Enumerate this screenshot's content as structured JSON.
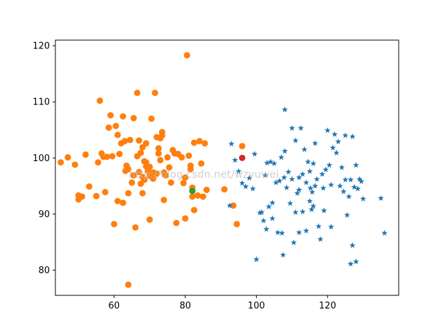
{
  "watermark": "http://blog.csdn.net/wzyuwei",
  "colors": {
    "background": "#ffffff",
    "cluster_dots": "#ff7f0e",
    "cluster_stars": "#1f77b4",
    "center_green": "#2ca02c",
    "center_red": "#d62728",
    "axes": "#000000"
  },
  "chart_data": {
    "type": "scatter",
    "title": "",
    "xlabel": "",
    "ylabel": "",
    "xlim": [
      43.5,
      140
    ],
    "ylim": [
      75.5,
      121
    ],
    "xticks": [
      60,
      80,
      100,
      120
    ],
    "yticks": [
      80,
      90,
      100,
      110,
      120
    ],
    "grid": false,
    "series": [
      {
        "marker": "circle",
        "color": "#ff7f0e",
        "points": [
          [
            45,
            99.2
          ],
          [
            47,
            100.1
          ],
          [
            49,
            98.8
          ],
          [
            50,
            93.3
          ],
          [
            50,
            92.6
          ],
          [
            51,
            93.1
          ],
          [
            52,
            100.6
          ],
          [
            53,
            94.9
          ],
          [
            55,
            93.2
          ],
          [
            55.5,
            99.2
          ],
          [
            56,
            110.2
          ],
          [
            56.5,
            100.8
          ],
          [
            57,
            100.2
          ],
          [
            57.5,
            93.9
          ],
          [
            58,
            100.2
          ],
          [
            58.5,
            105.4
          ],
          [
            59,
            107.6
          ],
          [
            59.5,
            100.3
          ],
          [
            60,
            88.2
          ],
          [
            60.5,
            105.7
          ],
          [
            61,
            92.3
          ],
          [
            61,
            104.1
          ],
          [
            61.5,
            100.7
          ],
          [
            62,
            102.6
          ],
          [
            62.5,
            92.0
          ],
          [
            62.5,
            107.4
          ],
          [
            63,
            103.0
          ],
          [
            63.2,
            97.7
          ],
          [
            63.5,
            98.6
          ],
          [
            64,
            77.4
          ],
          [
            64,
            98.0
          ],
          [
            64,
            93.7
          ],
          [
            64.5,
            103.2
          ],
          [
            65,
            95.6
          ],
          [
            65.5,
            107.1
          ],
          [
            65.5,
            96.9
          ],
          [
            66,
            87.6
          ],
          [
            66.5,
            100.3
          ],
          [
            66.5,
            111.6
          ],
          [
            67,
            103.1
          ],
          [
            67,
            97.5
          ],
          [
            67.5,
            100.9
          ],
          [
            67.5,
            95.4
          ],
          [
            68,
            101.9
          ],
          [
            68,
            96.6
          ],
          [
            68,
            93.7
          ],
          [
            68.5,
            99.4
          ],
          [
            68.5,
            96.1
          ],
          [
            69,
            102.6
          ],
          [
            69,
            99.2
          ],
          [
            69,
            98.5
          ],
          [
            69.5,
            97.7
          ],
          [
            70,
            98.4
          ],
          [
            70,
            96.8
          ],
          [
            70,
            89.0
          ],
          [
            70.5,
            107.0
          ],
          [
            71,
            97.4
          ],
          [
            71,
            96.3
          ],
          [
            71.5,
            111.6
          ],
          [
            72,
            103.7
          ],
          [
            72,
            97.2
          ],
          [
            72.5,
            101.7
          ],
          [
            72.5,
            100.8
          ],
          [
            73,
            103.5
          ],
          [
            73,
            99.6
          ],
          [
            73.5,
            104.6
          ],
          [
            73.5,
            104.0
          ],
          [
            74,
            97.4
          ],
          [
            74,
            92.5
          ],
          [
            74.5,
            96.9
          ],
          [
            75,
            100.1
          ],
          [
            75.5,
            98.3
          ],
          [
            76,
            95.6
          ],
          [
            76.5,
            101.4
          ],
          [
            77,
            100.8
          ],
          [
            77.5,
            88.4
          ],
          [
            78,
            100.7
          ],
          [
            79,
            100.1
          ],
          [
            79.5,
            95.5
          ],
          [
            80,
            96.5
          ],
          [
            80,
            89.2
          ],
          [
            80.5,
            118.3
          ],
          [
            81,
            100.4
          ],
          [
            81.5,
            98.6
          ],
          [
            81.5,
            98.0
          ],
          [
            82,
            93.1
          ],
          [
            82,
            94.7
          ],
          [
            82.5,
            90.7
          ],
          [
            82.5,
            102.7
          ],
          [
            83.5,
            93.3
          ],
          [
            84,
            103.0
          ],
          [
            84.5,
            99.0
          ],
          [
            85,
            93.1
          ],
          [
            85.5,
            102.6
          ],
          [
            86,
            94.3
          ],
          [
            91,
            94.4
          ],
          [
            93.5,
            91.5
          ],
          [
            94.5,
            88.2
          ],
          [
            96,
            102.1
          ]
        ]
      },
      {
        "marker": "star",
        "color": "#1f77b4",
        "points": [
          [
            92.5,
            91.5
          ],
          [
            93,
            102.5
          ],
          [
            94,
            99.6
          ],
          [
            95,
            97.6
          ],
          [
            96,
            95.5
          ],
          [
            97,
            94.9
          ],
          [
            98,
            96.4
          ],
          [
            99,
            94.5
          ],
          [
            99.5,
            100.7
          ],
          [
            100,
            81.9
          ],
          [
            101,
            90.2
          ],
          [
            101.5,
            90.3
          ],
          [
            102,
            88.8
          ],
          [
            102.5,
            96.9
          ],
          [
            102.8,
            87.3
          ],
          [
            103,
            99.1
          ],
          [
            103.5,
            91.3
          ],
          [
            104,
            99.3
          ],
          [
            104.5,
            89.2
          ],
          [
            104.5,
            92.0
          ],
          [
            105,
            99.0
          ],
          [
            105.5,
            95.6
          ],
          [
            106,
            86.7
          ],
          [
            106.5,
            95.9
          ],
          [
            107,
            100.1
          ],
          [
            107.2,
            86.6
          ],
          [
            107.5,
            82.7
          ],
          [
            107.8,
            96.5
          ],
          [
            108,
            101.2
          ],
          [
            108,
            108.6
          ],
          [
            108.5,
            94.7
          ],
          [
            109,
            97.5
          ],
          [
            109.5,
            91.9
          ],
          [
            110,
            96.2
          ],
          [
            110,
            105.3
          ],
          [
            110.5,
            84.9
          ],
          [
            111,
            103.1
          ],
          [
            111,
            90.3
          ],
          [
            111.5,
            93.7
          ],
          [
            112,
            96.5
          ],
          [
            112,
            86.7
          ],
          [
            112,
            94.3
          ],
          [
            112.5,
            105.3
          ],
          [
            113,
            97.1
          ],
          [
            113,
            90.4
          ],
          [
            113.5,
            101.5
          ],
          [
            114,
            95.6
          ],
          [
            114,
            87.0
          ],
          [
            114.5,
            99.3
          ],
          [
            115,
            92.3
          ],
          [
            115,
            97.6
          ],
          [
            115.2,
            94.6
          ],
          [
            115.5,
            90.8
          ],
          [
            115.7,
            93.9
          ],
          [
            116,
            91.4
          ],
          [
            116,
            99.0
          ],
          [
            116.5,
            102.6
          ],
          [
            116.5,
            95.0
          ],
          [
            117,
            96.2
          ],
          [
            117.5,
            87.8
          ],
          [
            118,
            85.5
          ],
          [
            118.5,
            97.1
          ],
          [
            118.8,
            94.6
          ],
          [
            119,
            90.6
          ],
          [
            119.5,
            97.9
          ],
          [
            120,
            104.9
          ],
          [
            120.5,
            98.7
          ],
          [
            121,
            95.2
          ],
          [
            121,
            87.7
          ],
          [
            121.5,
            101.8
          ],
          [
            122,
            104.2
          ],
          [
            122.5,
            100.9
          ],
          [
            123,
            102.9
          ],
          [
            123.5,
            95.0
          ],
          [
            124,
            98.3
          ],
          [
            124.5,
            94.0
          ],
          [
            125,
            96.1
          ],
          [
            125.5,
            89.8
          ],
          [
            126,
            93.1
          ],
          [
            126.5,
            96.1
          ],
          [
            126.5,
            81.1
          ],
          [
            127,
            103.8
          ],
          [
            127.5,
            94.8
          ],
          [
            128,
            98.7
          ],
          [
            128,
            81.5
          ],
          [
            128.5,
            94.5
          ],
          [
            129,
            96.2
          ],
          [
            129.5,
            95.8
          ],
          [
            130,
            92.7
          ],
          [
            135,
            92.8
          ],
          [
            136,
            86.6
          ],
          [
            127,
            84.4
          ],
          [
            125,
            104.0
          ]
        ]
      },
      {
        "marker": "circle",
        "color": "#2ca02c",
        "points": [
          [
            82,
            94.1
          ]
        ]
      },
      {
        "marker": "circle",
        "color": "#d62728",
        "points": [
          [
            96,
            100
          ]
        ]
      }
    ]
  }
}
